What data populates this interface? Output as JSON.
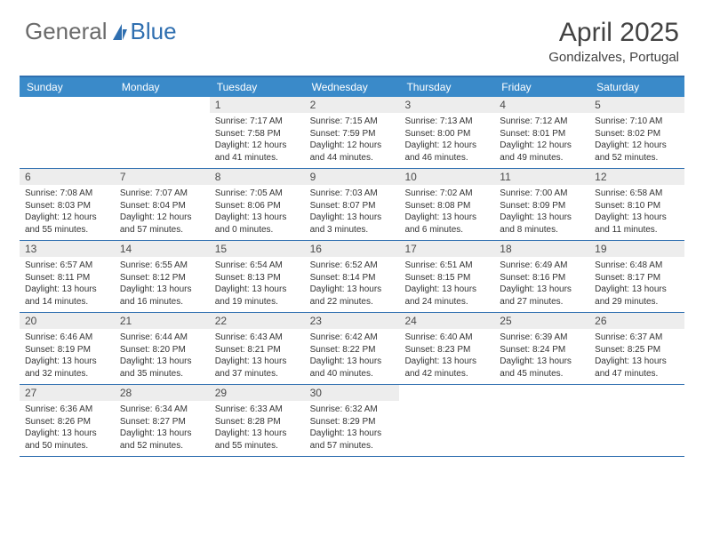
{
  "logo": {
    "part1": "General",
    "part2": "Blue"
  },
  "title": {
    "month": "April 2025",
    "location": "Gondizalves, Portugal"
  },
  "colors": {
    "header_bar": "#3a8ac9",
    "border": "#2f6fb0",
    "daynum_bg": "#ededed",
    "logo_gray": "#6a6a6a",
    "logo_blue": "#2f6fb0",
    "text": "#333333"
  },
  "dow": [
    "Sunday",
    "Monday",
    "Tuesday",
    "Wednesday",
    "Thursday",
    "Friday",
    "Saturday"
  ],
  "weeks": [
    [
      {
        "n": "",
        "sr": "",
        "ss": "",
        "dl": ""
      },
      {
        "n": "",
        "sr": "",
        "ss": "",
        "dl": ""
      },
      {
        "n": "1",
        "sr": "Sunrise: 7:17 AM",
        "ss": "Sunset: 7:58 PM",
        "dl": "Daylight: 12 hours and 41 minutes."
      },
      {
        "n": "2",
        "sr": "Sunrise: 7:15 AM",
        "ss": "Sunset: 7:59 PM",
        "dl": "Daylight: 12 hours and 44 minutes."
      },
      {
        "n": "3",
        "sr": "Sunrise: 7:13 AM",
        "ss": "Sunset: 8:00 PM",
        "dl": "Daylight: 12 hours and 46 minutes."
      },
      {
        "n": "4",
        "sr": "Sunrise: 7:12 AM",
        "ss": "Sunset: 8:01 PM",
        "dl": "Daylight: 12 hours and 49 minutes."
      },
      {
        "n": "5",
        "sr": "Sunrise: 7:10 AM",
        "ss": "Sunset: 8:02 PM",
        "dl": "Daylight: 12 hours and 52 minutes."
      }
    ],
    [
      {
        "n": "6",
        "sr": "Sunrise: 7:08 AM",
        "ss": "Sunset: 8:03 PM",
        "dl": "Daylight: 12 hours and 55 minutes."
      },
      {
        "n": "7",
        "sr": "Sunrise: 7:07 AM",
        "ss": "Sunset: 8:04 PM",
        "dl": "Daylight: 12 hours and 57 minutes."
      },
      {
        "n": "8",
        "sr": "Sunrise: 7:05 AM",
        "ss": "Sunset: 8:06 PM",
        "dl": "Daylight: 13 hours and 0 minutes."
      },
      {
        "n": "9",
        "sr": "Sunrise: 7:03 AM",
        "ss": "Sunset: 8:07 PM",
        "dl": "Daylight: 13 hours and 3 minutes."
      },
      {
        "n": "10",
        "sr": "Sunrise: 7:02 AM",
        "ss": "Sunset: 8:08 PM",
        "dl": "Daylight: 13 hours and 6 minutes."
      },
      {
        "n": "11",
        "sr": "Sunrise: 7:00 AM",
        "ss": "Sunset: 8:09 PM",
        "dl": "Daylight: 13 hours and 8 minutes."
      },
      {
        "n": "12",
        "sr": "Sunrise: 6:58 AM",
        "ss": "Sunset: 8:10 PM",
        "dl": "Daylight: 13 hours and 11 minutes."
      }
    ],
    [
      {
        "n": "13",
        "sr": "Sunrise: 6:57 AM",
        "ss": "Sunset: 8:11 PM",
        "dl": "Daylight: 13 hours and 14 minutes."
      },
      {
        "n": "14",
        "sr": "Sunrise: 6:55 AM",
        "ss": "Sunset: 8:12 PM",
        "dl": "Daylight: 13 hours and 16 minutes."
      },
      {
        "n": "15",
        "sr": "Sunrise: 6:54 AM",
        "ss": "Sunset: 8:13 PM",
        "dl": "Daylight: 13 hours and 19 minutes."
      },
      {
        "n": "16",
        "sr": "Sunrise: 6:52 AM",
        "ss": "Sunset: 8:14 PM",
        "dl": "Daylight: 13 hours and 22 minutes."
      },
      {
        "n": "17",
        "sr": "Sunrise: 6:51 AM",
        "ss": "Sunset: 8:15 PM",
        "dl": "Daylight: 13 hours and 24 minutes."
      },
      {
        "n": "18",
        "sr": "Sunrise: 6:49 AM",
        "ss": "Sunset: 8:16 PM",
        "dl": "Daylight: 13 hours and 27 minutes."
      },
      {
        "n": "19",
        "sr": "Sunrise: 6:48 AM",
        "ss": "Sunset: 8:17 PM",
        "dl": "Daylight: 13 hours and 29 minutes."
      }
    ],
    [
      {
        "n": "20",
        "sr": "Sunrise: 6:46 AM",
        "ss": "Sunset: 8:19 PM",
        "dl": "Daylight: 13 hours and 32 minutes."
      },
      {
        "n": "21",
        "sr": "Sunrise: 6:44 AM",
        "ss": "Sunset: 8:20 PM",
        "dl": "Daylight: 13 hours and 35 minutes."
      },
      {
        "n": "22",
        "sr": "Sunrise: 6:43 AM",
        "ss": "Sunset: 8:21 PM",
        "dl": "Daylight: 13 hours and 37 minutes."
      },
      {
        "n": "23",
        "sr": "Sunrise: 6:42 AM",
        "ss": "Sunset: 8:22 PM",
        "dl": "Daylight: 13 hours and 40 minutes."
      },
      {
        "n": "24",
        "sr": "Sunrise: 6:40 AM",
        "ss": "Sunset: 8:23 PM",
        "dl": "Daylight: 13 hours and 42 minutes."
      },
      {
        "n": "25",
        "sr": "Sunrise: 6:39 AM",
        "ss": "Sunset: 8:24 PM",
        "dl": "Daylight: 13 hours and 45 minutes."
      },
      {
        "n": "26",
        "sr": "Sunrise: 6:37 AM",
        "ss": "Sunset: 8:25 PM",
        "dl": "Daylight: 13 hours and 47 minutes."
      }
    ],
    [
      {
        "n": "27",
        "sr": "Sunrise: 6:36 AM",
        "ss": "Sunset: 8:26 PM",
        "dl": "Daylight: 13 hours and 50 minutes."
      },
      {
        "n": "28",
        "sr": "Sunrise: 6:34 AM",
        "ss": "Sunset: 8:27 PM",
        "dl": "Daylight: 13 hours and 52 minutes."
      },
      {
        "n": "29",
        "sr": "Sunrise: 6:33 AM",
        "ss": "Sunset: 8:28 PM",
        "dl": "Daylight: 13 hours and 55 minutes."
      },
      {
        "n": "30",
        "sr": "Sunrise: 6:32 AM",
        "ss": "Sunset: 8:29 PM",
        "dl": "Daylight: 13 hours and 57 minutes."
      },
      {
        "n": "",
        "sr": "",
        "ss": "",
        "dl": ""
      },
      {
        "n": "",
        "sr": "",
        "ss": "",
        "dl": ""
      },
      {
        "n": "",
        "sr": "",
        "ss": "",
        "dl": ""
      }
    ]
  ]
}
